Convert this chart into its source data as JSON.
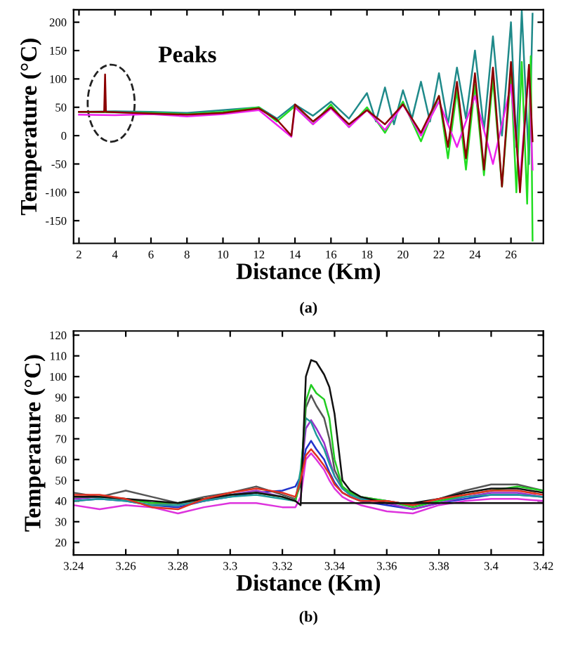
{
  "chart_data": [
    {
      "type": "line",
      "xlabel": "Distance (Km)",
      "ylabel": "Temperature (°C)",
      "xlim": [
        1.7,
        27.8
      ],
      "ylim": [
        -190,
        222
      ],
      "xticks": [
        2,
        4,
        6,
        8,
        10,
        12,
        14,
        16,
        18,
        20,
        22,
        24,
        26
      ],
      "yticks": [
        -150,
        -100,
        -50,
        0,
        50,
        100,
        150,
        200
      ],
      "grid": false,
      "legend": false,
      "marker": "none",
      "line_style": "solid",
      "annotations": [
        "Peaks",
        "(a)"
      ],
      "series": [
        {
          "color": "#1f8a8a",
          "x": [
            2,
            4,
            6,
            8,
            10,
            12,
            13,
            14,
            15,
            16,
            17,
            18,
            18.5,
            19,
            19.5,
            20,
            20.5,
            21,
            21.5,
            22,
            22.5,
            23,
            23.5,
            24,
            24.5,
            25,
            25.5,
            26,
            26.3,
            26.6,
            27,
            27.2
          ],
          "values": [
            42,
            43,
            42,
            40,
            45,
            50,
            30,
            55,
            35,
            60,
            30,
            75,
            25,
            85,
            20,
            80,
            30,
            95,
            25,
            110,
            20,
            120,
            30,
            150,
            10,
            175,
            0,
            200,
            -20,
            220,
            -50,
            215
          ]
        },
        {
          "color": "#22dd22",
          "x": [
            2,
            4,
            6,
            8,
            10,
            12,
            13,
            14,
            15,
            16,
            17,
            18,
            19,
            20,
            21,
            22,
            22.5,
            23,
            23.5,
            24,
            24.5,
            25,
            25.5,
            26,
            26.3,
            26.6,
            26.9,
            27.1,
            27.2
          ],
          "values": [
            42,
            41,
            40,
            38,
            42,
            50,
            25,
            52,
            20,
            55,
            15,
            50,
            5,
            60,
            -10,
            70,
            -40,
            80,
            -60,
            90,
            -70,
            100,
            -90,
            110,
            -100,
            130,
            -120,
            140,
            -185
          ]
        },
        {
          "color": "#ee22ee",
          "x": [
            2,
            4,
            6,
            8,
            10,
            12,
            13.8,
            14,
            15,
            16,
            17,
            18,
            19,
            20,
            21,
            22,
            23,
            24,
            25,
            26,
            26.5,
            27,
            27.2
          ],
          "values": [
            37,
            36,
            38,
            34,
            38,
            45,
            -2,
            50,
            20,
            48,
            15,
            45,
            10,
            55,
            0,
            60,
            -20,
            70,
            -50,
            90,
            -80,
            120,
            -60
          ]
        },
        {
          "color": "#8b0000",
          "x": [
            2,
            3.4,
            3.45,
            3.5,
            5,
            8,
            10,
            12,
            13,
            13.8,
            14,
            15,
            16,
            17,
            18,
            19,
            20,
            21,
            22,
            22.5,
            23,
            23.5,
            24,
            24.5,
            25,
            25.5,
            26,
            26.5,
            27,
            27.2
          ],
          "values": [
            42,
            42,
            108,
            42,
            40,
            37,
            40,
            48,
            28,
            0,
            55,
            25,
            50,
            20,
            45,
            20,
            55,
            5,
            70,
            -20,
            95,
            -40,
            110,
            -60,
            120,
            -90,
            130,
            -100,
            125,
            -10
          ]
        }
      ]
    },
    {
      "type": "line",
      "xlabel": "Distance (Km)",
      "ylabel": "Temperature (°C)",
      "xlim": [
        3.24,
        3.42
      ],
      "ylim": [
        14,
        122
      ],
      "xticks": [
        3.24,
        3.26,
        3.28,
        3.3,
        3.32,
        3.34,
        3.36,
        3.38,
        3.4,
        3.42
      ],
      "yticks": [
        20,
        30,
        40,
        50,
        60,
        70,
        80,
        90,
        100,
        110,
        120
      ],
      "grid": false,
      "legend": false,
      "marker": "none",
      "line_style": "solid",
      "annotations": [
        "(b)"
      ],
      "x": [
        3.24,
        3.25,
        3.26,
        3.27,
        3.28,
        3.29,
        3.3,
        3.31,
        3.32,
        3.325,
        3.327,
        3.329,
        3.331,
        3.333,
        3.336,
        3.338,
        3.34,
        3.343,
        3.346,
        3.35,
        3.36,
        3.37,
        3.38,
        3.39,
        3.4,
        3.41,
        3.42
      ],
      "series": [
        {
          "color": "#dd33dd",
          "values": [
            38,
            36,
            38,
            37,
            34,
            37,
            39,
            39,
            37,
            37,
            42,
            60,
            63,
            60,
            55,
            50,
            46,
            42,
            40,
            38,
            35,
            34,
            38,
            40,
            41,
            41,
            40
          ]
        },
        {
          "color": "#2233cc",
          "values": [
            40,
            41,
            40,
            38,
            37,
            40,
            42,
            44,
            45,
            47,
            52,
            65,
            69,
            65,
            60,
            54,
            49,
            44,
            42,
            40,
            38,
            36,
            39,
            41,
            43,
            43,
            42
          ]
        },
        {
          "color": "#9933cc",
          "values": [
            41,
            42,
            41,
            39,
            38,
            40,
            43,
            45,
            42,
            40,
            52,
            75,
            79,
            75,
            68,
            60,
            52,
            46,
            43,
            41,
            39,
            36,
            39,
            42,
            44,
            44,
            42
          ]
        },
        {
          "color": "#1f9a9a",
          "values": [
            40,
            41,
            40,
            38,
            38,
            40,
            42,
            43,
            41,
            40,
            55,
            80,
            78,
            72,
            65,
            58,
            52,
            46,
            43,
            41,
            40,
            38,
            40,
            42,
            43,
            43,
            42
          ]
        },
        {
          "color": "#555555",
          "values": [
            44,
            42,
            45,
            42,
            39,
            42,
            44,
            47,
            43,
            41,
            48,
            85,
            91,
            86,
            80,
            70,
            55,
            47,
            44,
            42,
            40,
            38,
            41,
            45,
            48,
            48,
            45
          ]
        },
        {
          "color": "#22cc22",
          "values": [
            42,
            42,
            41,
            39,
            39,
            41,
            43,
            44,
            42,
            40,
            50,
            88,
            96,
            92,
            89,
            80,
            60,
            47,
            44,
            42,
            40,
            37,
            40,
            43,
            45,
            47,
            45
          ]
        },
        {
          "color": "#111111",
          "values": [
            42,
            42,
            41,
            40,
            39,
            41,
            43,
            44,
            42,
            40,
            38,
            100,
            108,
            107,
            101,
            95,
            82,
            50,
            45,
            42,
            39,
            39,
            41,
            44,
            46,
            46,
            44
          ]
        },
        {
          "color": "#e03020",
          "values": [
            43,
            43,
            41,
            37,
            36,
            41,
            44,
            46,
            44,
            42,
            50,
            62,
            65,
            62,
            57,
            53,
            48,
            44,
            42,
            40,
            40,
            38,
            41,
            43,
            45,
            45,
            43
          ]
        },
        {
          "color": "#111111",
          "x": [
            3.327,
            3.42
          ],
          "values": [
            39,
            39
          ]
        }
      ]
    }
  ]
}
